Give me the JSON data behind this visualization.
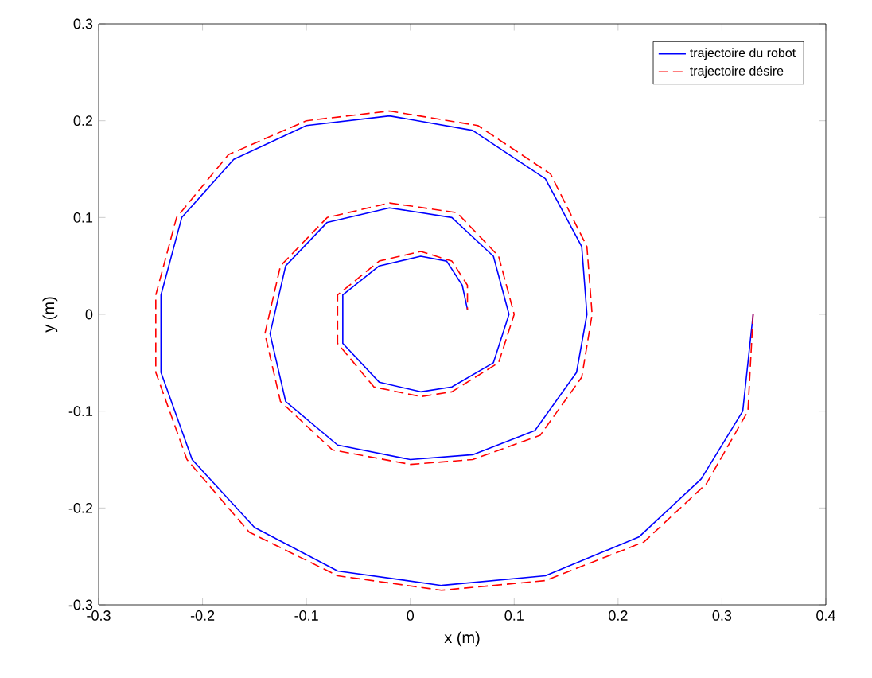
{
  "chart_data": {
    "type": "line",
    "xlabel": "x (m)",
    "ylabel": "y (m)",
    "xlim": [
      -0.3,
      0.4
    ],
    "ylim": [
      -0.3,
      0.3
    ],
    "xticks": [
      -0.3,
      -0.2,
      -0.1,
      0,
      0.1,
      0.2,
      0.3,
      0.4
    ],
    "yticks": [
      -0.3,
      -0.2,
      -0.1,
      0,
      0.1,
      0.2,
      0.3
    ],
    "legend": "top right",
    "grid": false,
    "marker": "none",
    "series": [
      {
        "name": "trajectoire du robot",
        "color": "#0000ff",
        "line_style": "solid",
        "x": [
          0.33,
          0.32,
          0.28,
          0.22,
          0.13,
          0.03,
          -0.07,
          -0.15,
          -0.21,
          -0.24,
          -0.24,
          -0.22,
          -0.17,
          -0.1,
          -0.02,
          0.06,
          0.13,
          0.165,
          0.17,
          0.16,
          0.12,
          0.06,
          0.0,
          -0.07,
          -0.12,
          -0.135,
          -0.12,
          -0.08,
          -0.02,
          0.04,
          0.08,
          0.095,
          0.08,
          0.04,
          0.01,
          -0.03,
          -0.065,
          -0.065,
          -0.03,
          0.01,
          0.035,
          0.05,
          0.055
        ],
        "values": [
          0.0,
          -0.1,
          -0.17,
          -0.23,
          -0.27,
          -0.28,
          -0.265,
          -0.22,
          -0.15,
          -0.06,
          0.02,
          0.1,
          0.16,
          0.195,
          0.205,
          0.19,
          0.14,
          0.07,
          0.0,
          -0.06,
          -0.12,
          -0.145,
          -0.15,
          -0.135,
          -0.09,
          -0.02,
          0.05,
          0.095,
          0.11,
          0.1,
          0.06,
          0.0,
          -0.05,
          -0.075,
          -0.08,
          -0.07,
          -0.03,
          0.02,
          0.05,
          0.06,
          0.055,
          0.03,
          0.005
        ]
      },
      {
        "name": "trajectoire désire",
        "color": "#ff0000",
        "line_style": "dashed",
        "x": [
          0.33,
          0.325,
          0.285,
          0.225,
          0.13,
          0.03,
          -0.07,
          -0.155,
          -0.215,
          -0.245,
          -0.245,
          -0.225,
          -0.175,
          -0.1,
          -0.02,
          0.065,
          0.135,
          0.17,
          0.175,
          0.165,
          0.125,
          0.06,
          0.0,
          -0.075,
          -0.125,
          -0.14,
          -0.125,
          -0.08,
          -0.02,
          0.045,
          0.085,
          0.1,
          0.085,
          0.04,
          0.01,
          -0.035,
          -0.07,
          -0.07,
          -0.03,
          0.01,
          0.04,
          0.055,
          0.055
        ],
        "values": [
          0.0,
          -0.1,
          -0.175,
          -0.235,
          -0.275,
          -0.285,
          -0.27,
          -0.225,
          -0.15,
          -0.06,
          0.02,
          0.1,
          0.165,
          0.2,
          0.21,
          0.195,
          0.145,
          0.07,
          0.0,
          -0.065,
          -0.125,
          -0.15,
          -0.155,
          -0.14,
          -0.09,
          -0.02,
          0.05,
          0.1,
          0.115,
          0.105,
          0.06,
          0.0,
          -0.05,
          -0.08,
          -0.085,
          -0.075,
          -0.03,
          0.02,
          0.055,
          0.065,
          0.055,
          0.03,
          0.005
        ]
      }
    ]
  }
}
